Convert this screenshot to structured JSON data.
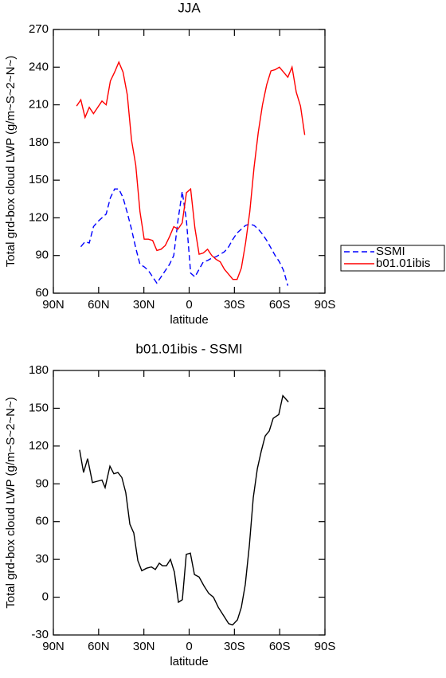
{
  "chart_data": [
    {
      "type": "line",
      "title": "JJA",
      "xlabel": "latitude",
      "ylabel": "Total grd-box cloud LWP (g/m~S~2~N~)",
      "x": [
        74.6,
        71.8,
        69.0,
        66.2,
        63.4,
        60.6,
        57.8,
        55.0,
        52.2,
        49.4,
        46.6,
        43.8,
        41.0,
        38.2,
        35.4,
        32.6,
        29.8,
        27.0,
        24.2,
        21.4,
        18.6,
        15.8,
        13.0,
        10.2,
        7.4,
        4.6,
        1.8,
        -1.0,
        -3.8,
        -6.6,
        -9.4,
        -12.2,
        -15.0,
        -17.8,
        -20.6,
        -23.4,
        -26.2,
        -29.0,
        -31.8,
        -34.6,
        -37.4,
        -40.2,
        -43.0,
        -45.8,
        -48.6,
        -51.4,
        -54.2,
        -57.0,
        -59.8,
        -62.6,
        -65.4,
        -68.2,
        -71.0,
        -73.8,
        -76.6
      ],
      "series": [
        {
          "name": "SSMI",
          "color": "#0000ff",
          "line_style": "dashed",
          "values": [
            null,
            97,
            101,
            100,
            113,
            117,
            120,
            123,
            136,
            143,
            143,
            136,
            124,
            111,
            96,
            83,
            81,
            78,
            73,
            68,
            73,
            78,
            83,
            90,
            118,
            141,
            118,
            76,
            73,
            79,
            85,
            86,
            88,
            89,
            91,
            93,
            97,
            103,
            108,
            111,
            114,
            115,
            114,
            111,
            107,
            102,
            96,
            90,
            85,
            78,
            66,
            null,
            null,
            null,
            null
          ]
        },
        {
          "name": "b01.01ibis",
          "color": "#ff0000",
          "line_style": "solid",
          "values": [
            209,
            214,
            200,
            208,
            203,
            208,
            213,
            210,
            229,
            236,
            244,
            236,
            218,
            182,
            162,
            125,
            103,
            103,
            102,
            94,
            95,
            98,
            105,
            113,
            111,
            116,
            140,
            143,
            112,
            91,
            92,
            95,
            90,
            87,
            85,
            79,
            75,
            71,
            71,
            80,
            100,
            125,
            160,
            188,
            210,
            226,
            237,
            238,
            240,
            236,
            232,
            240,
            220,
            209,
            186
          ]
        }
      ],
      "xlim": [
        90,
        -90
      ],
      "xticks": [
        {
          "value": 90,
          "label": "90N"
        },
        {
          "value": 60,
          "label": "60N"
        },
        {
          "value": 30,
          "label": "30N"
        },
        0,
        {
          "value": -30,
          "label": "30S"
        },
        {
          "value": -60,
          "label": "60S"
        },
        {
          "value": -90,
          "label": "90S"
        }
      ],
      "ylim": [
        60,
        270
      ],
      "yticks": [
        60,
        90,
        120,
        150,
        180,
        210,
        240,
        270
      ],
      "legend": "right"
    },
    {
      "type": "line",
      "title": "b01.01ibis - SSMI",
      "xlabel": "latitude",
      "ylabel": "Total grd-box cloud LWP (g/m~S~2~N~)",
      "x": [
        72.6,
        70.0,
        67.3,
        64.1,
        61.0,
        57.8,
        55.7,
        52.5,
        49.9,
        47.2,
        44.6,
        42.0,
        39.3,
        36.7,
        34.0,
        31.4,
        28.2,
        25.0,
        22.4,
        19.8,
        17.7,
        15.0,
        12.4,
        9.8,
        7.1,
        4.5,
        1.9,
        -0.8,
        -3.5,
        -6.6,
        -9.8,
        -13.0,
        -16.1,
        -19.3,
        -22.5,
        -26.2,
        -28.8,
        -32.0,
        -34.6,
        -37.2,
        -39.9,
        -42.5,
        -45.2,
        -47.8,
        -50.4,
        -53.1,
        -55.7,
        -59.4,
        -62.1,
        -65.8
      ],
      "series": [
        {
          "color": "#000000",
          "line_style": "solid",
          "values": [
            117,
            99,
            110,
            91,
            92,
            93,
            87,
            104,
            98,
            99,
            95,
            83,
            58,
            51,
            29,
            21,
            23,
            24,
            22,
            27,
            25,
            25,
            30,
            20,
            -4,
            -2,
            34,
            35,
            18,
            16,
            9,
            3,
            0,
            -8,
            -14,
            -21,
            -22,
            -18,
            -8,
            10,
            41,
            79,
            102,
            116,
            128,
            132,
            142,
            145,
            160,
            155
          ]
        }
      ],
      "xlim": [
        90,
        -90
      ],
      "xticks": [
        {
          "value": 90,
          "label": "90N"
        },
        {
          "value": 60,
          "label": "60N"
        },
        {
          "value": 30,
          "label": "30N"
        },
        0,
        {
          "value": -30,
          "label": "30S"
        },
        {
          "value": -60,
          "label": "60S"
        },
        {
          "value": -90,
          "label": "90S"
        }
      ],
      "ylim": [
        -30,
        180
      ],
      "yticks": [
        -30,
        0,
        30,
        60,
        90,
        120,
        150,
        180
      ]
    }
  ]
}
